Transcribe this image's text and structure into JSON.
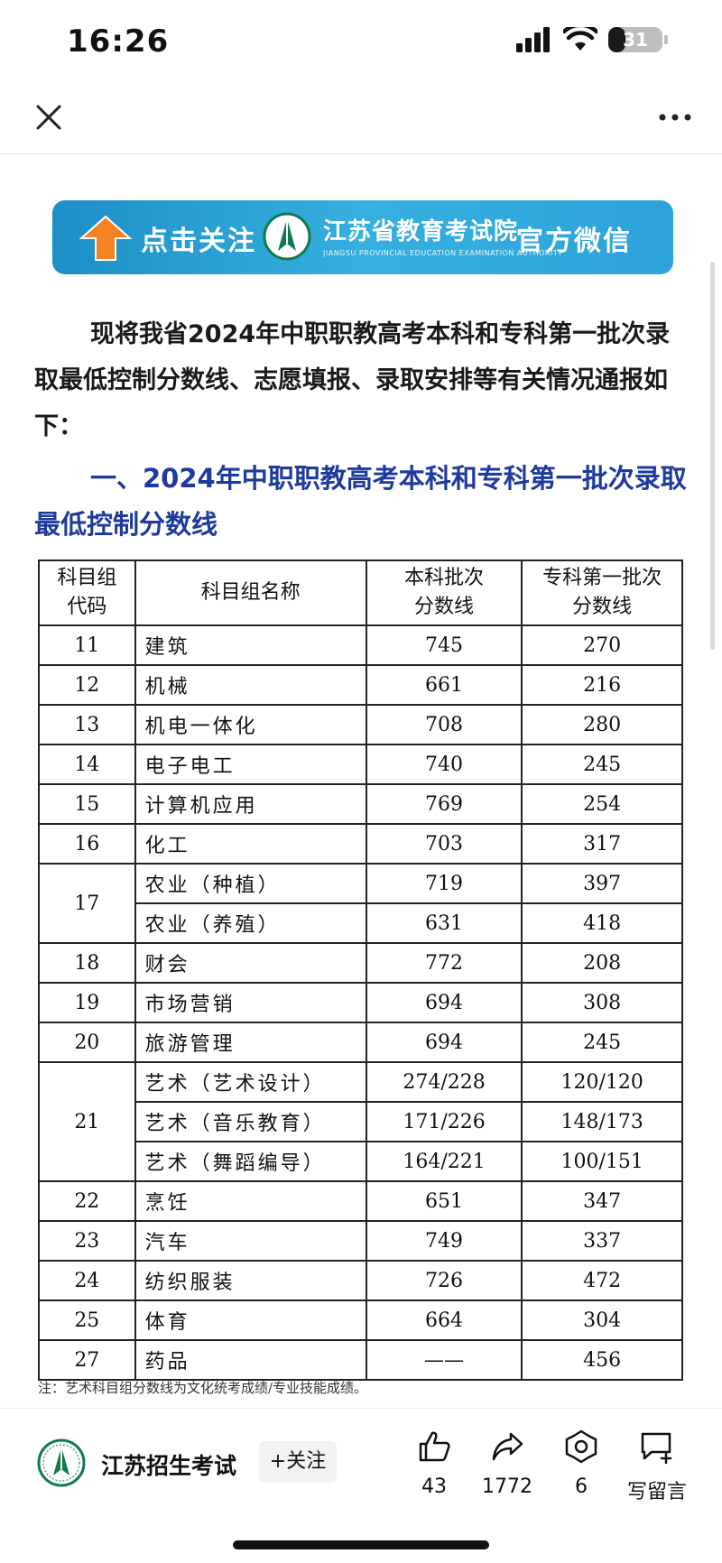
{
  "status_bar": {
    "time": "16:26",
    "battery_percent": "31",
    "battery_level": 0.31
  },
  "navbar": {
    "close_icon": "close-icon",
    "more_icon": "more-icon"
  },
  "banner": {
    "follow_text": "点击关注",
    "org_name": "江苏省教育考试院",
    "org_en": "JIANGSU PROVINCIAL EDUCATION EXAMINATION AUTHORITY",
    "wechat_text": "官方微信",
    "colors": {
      "background": "#2ea3da",
      "arrow": "#f58220",
      "emblem": "#0f7a4a"
    }
  },
  "article": {
    "intro": "现将我省2024年中职职教高考本科和专科第一批次录取最低控制分数线、志愿填报、录取安排等有关情况通报如下：",
    "section_title": "一、2024年中职职教高考本科和专科第一批次录取最低控制分数线",
    "note": "注：艺术科目组分数线为文化统考成绩/专业技能成绩。"
  },
  "table": {
    "headers": {
      "code_line1": "科目组",
      "code_line2": "代码",
      "name": "科目组名称",
      "bachelor_line1": "本科批次",
      "bachelor_line2": "分数线",
      "junior_line1": "专科第一批次",
      "junior_line2": "分数线"
    },
    "groups": [
      {
        "code": "11",
        "rows": [
          {
            "name": "建筑",
            "bachelor": "745",
            "junior": "270"
          }
        ]
      },
      {
        "code": "12",
        "rows": [
          {
            "name": "机械",
            "bachelor": "661",
            "junior": "216"
          }
        ]
      },
      {
        "code": "13",
        "rows": [
          {
            "name": "机电一体化",
            "bachelor": "708",
            "junior": "280"
          }
        ]
      },
      {
        "code": "14",
        "rows": [
          {
            "name": "电子电工",
            "bachelor": "740",
            "junior": "245"
          }
        ]
      },
      {
        "code": "15",
        "rows": [
          {
            "name": "计算机应用",
            "bachelor": "769",
            "junior": "254"
          }
        ]
      },
      {
        "code": "16",
        "rows": [
          {
            "name": "化工",
            "bachelor": "703",
            "junior": "317"
          }
        ]
      },
      {
        "code": "17",
        "rows": [
          {
            "name": "农业（种植）",
            "bachelor": "719",
            "junior": "397"
          },
          {
            "name": "农业（养殖）",
            "bachelor": "631",
            "junior": "418"
          }
        ]
      },
      {
        "code": "18",
        "rows": [
          {
            "name": "财会",
            "bachelor": "772",
            "junior": "208"
          }
        ]
      },
      {
        "code": "19",
        "rows": [
          {
            "name": "市场营销",
            "bachelor": "694",
            "junior": "308"
          }
        ]
      },
      {
        "code": "20",
        "rows": [
          {
            "name": "旅游管理",
            "bachelor": "694",
            "junior": "245"
          }
        ]
      },
      {
        "code": "21",
        "rows": [
          {
            "name": "艺术（艺术设计）",
            "bachelor": "274/228",
            "junior": "120/120"
          },
          {
            "name": "艺术（音乐教育）",
            "bachelor": "171/226",
            "junior": "148/173"
          },
          {
            "name": "艺术（舞蹈编导）",
            "bachelor": "164/221",
            "junior": "100/151"
          }
        ]
      },
      {
        "code": "22",
        "rows": [
          {
            "name": "烹饪",
            "bachelor": "651",
            "junior": "347"
          }
        ]
      },
      {
        "code": "23",
        "rows": [
          {
            "name": "汽车",
            "bachelor": "749",
            "junior": "337"
          }
        ]
      },
      {
        "code": "24",
        "rows": [
          {
            "name": "纺织服装",
            "bachelor": "726",
            "junior": "472"
          }
        ]
      },
      {
        "code": "25",
        "rows": [
          {
            "name": "体育",
            "bachelor": "664",
            "junior": "304"
          }
        ]
      },
      {
        "code": "27",
        "rows": [
          {
            "name": "药品",
            "bachelor": "——",
            "junior": "456"
          }
        ]
      }
    ]
  },
  "bottom_bar": {
    "account_name": "江苏招生考试",
    "follow_label": "+关注",
    "actions": {
      "like": {
        "icon": "thumbs-up-icon",
        "count": "43"
      },
      "share": {
        "icon": "share-icon",
        "count": "1772"
      },
      "recommend": {
        "icon": "recommend-icon",
        "count": "6"
      },
      "comment": {
        "icon": "comment-icon",
        "label": "写留言"
      }
    }
  }
}
